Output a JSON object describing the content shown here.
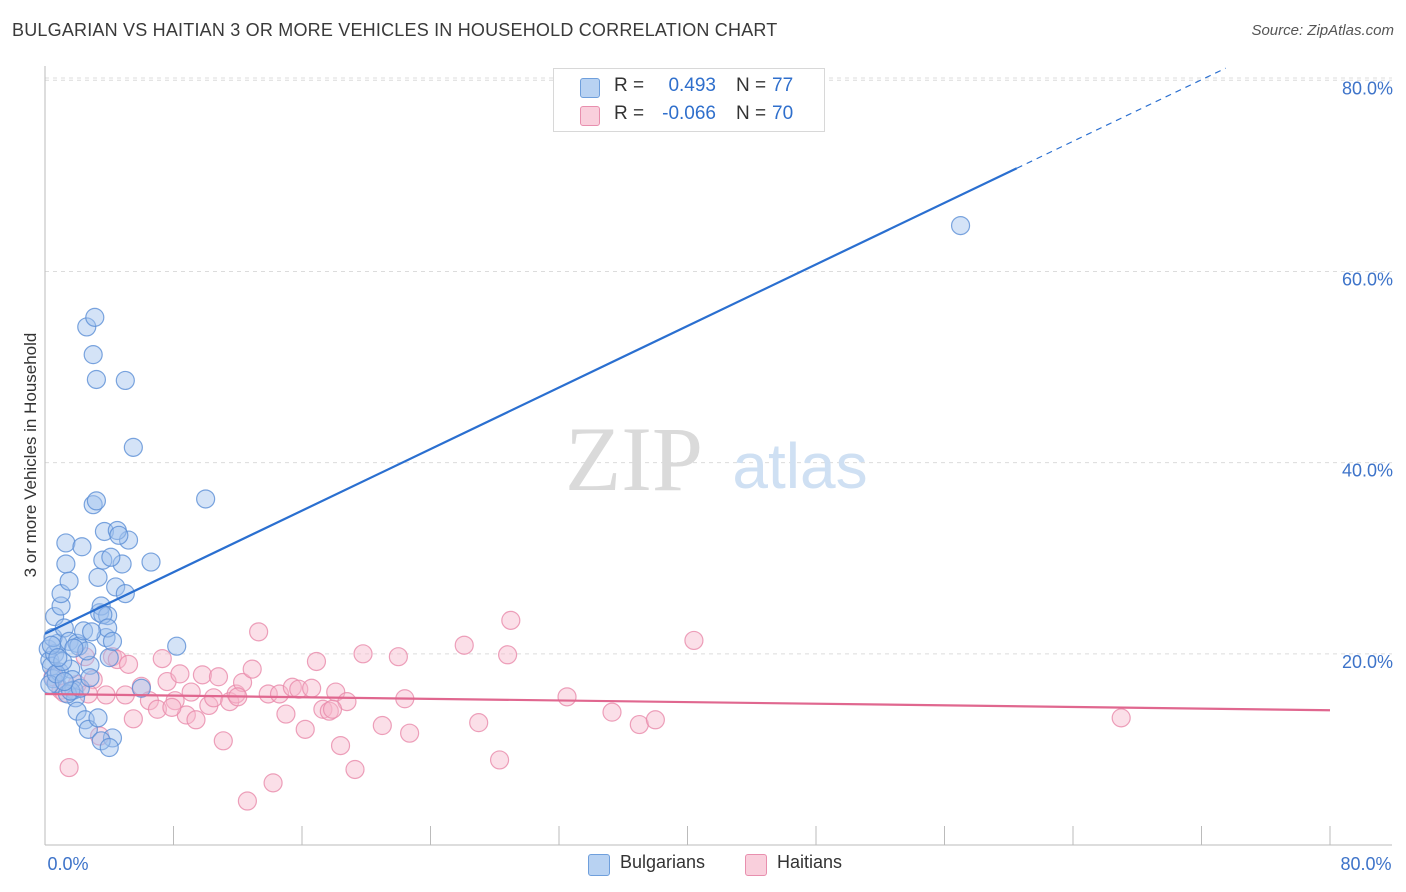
{
  "header": {
    "title": "BULGARIAN VS HAITIAN 3 OR MORE VEHICLES IN HOUSEHOLD CORRELATION CHART",
    "source": "Source: ZipAtlas.com"
  },
  "legend": {
    "rows": [
      {
        "r_label": "R =",
        "r_value": "0.493",
        "n_label": "N =",
        "n_value": "77"
      },
      {
        "r_label": "R =",
        "r_value": "-0.066",
        "n_label": "N =",
        "n_value": "70"
      }
    ]
  },
  "bottom_legend": {
    "series1": "Bulgarians",
    "series2": "Haitians"
  },
  "watermark": {
    "zip": "ZIP",
    "atlas": "atlas"
  },
  "colors": {
    "blue_fill": "#9fc2ee",
    "blue_stroke": "#5b8fd6",
    "blue_line": "#2a6fd0",
    "pink_fill": "#f6b9cd",
    "pink_stroke": "#e98aaa",
    "pink_line": "#e0678f",
    "tick_text": "#3d73c9",
    "grid": "#dcdcdc"
  },
  "chart_data": {
    "type": "scatter",
    "title": "BULGARIAN VS HAITIAN 3 OR MORE VEHICLES IN HOUSEHOLD CORRELATION CHART",
    "xlabel": "",
    "ylabel": "3 or more Vehicles in Household",
    "xlim": [
      0,
      80
    ],
    "ylim": [
      0,
      80
    ],
    "x_ticks": [
      {
        "value": 0,
        "label": "0.0%"
      },
      {
        "value": 80,
        "label": "80.0%"
      }
    ],
    "y_ticks": [
      {
        "value": 20,
        "label": "20.0%"
      },
      {
        "value": 40,
        "label": "40.0%"
      },
      {
        "value": 60,
        "label": "60.0%"
      },
      {
        "value": 80,
        "label": "80.0%"
      }
    ],
    "series": [
      {
        "name": "Bulgarians",
        "R": 0.493,
        "N": 77,
        "trend": {
          "x0": 0,
          "y0": 22.1,
          "x1": 60.5,
          "y1": 70.8,
          "dash_to_x": 88
        },
        "points": [
          [
            0.2,
            20.5
          ],
          [
            0.3,
            19.3
          ],
          [
            0.4,
            18.7
          ],
          [
            0.5,
            17.4
          ],
          [
            0.6,
            20.0
          ],
          [
            0.7,
            16.9
          ],
          [
            0.8,
            21.1
          ],
          [
            0.9,
            18.1
          ],
          [
            0.5,
            21.7
          ],
          [
            0.6,
            23.9
          ],
          [
            1.0,
            25.0
          ],
          [
            1.0,
            26.3
          ],
          [
            1.2,
            22.7
          ],
          [
            1.3,
            29.4
          ],
          [
            1.3,
            31.6
          ],
          [
            1.5,
            27.6
          ],
          [
            1.5,
            21.3
          ],
          [
            1.6,
            18.4
          ],
          [
            1.7,
            17.3
          ],
          [
            1.8,
            16.2
          ],
          [
            1.9,
            15.4
          ],
          [
            2.0,
            14.0
          ],
          [
            2.0,
            21.1
          ],
          [
            2.1,
            20.8
          ],
          [
            2.3,
            31.2
          ],
          [
            2.4,
            22.4
          ],
          [
            2.5,
            13.1
          ],
          [
            2.7,
            12.1
          ],
          [
            2.8,
            18.8
          ],
          [
            3.0,
            35.6
          ],
          [
            3.2,
            36.0
          ],
          [
            3.3,
            28.0
          ],
          [
            3.4,
            24.3
          ],
          [
            3.5,
            25.0
          ],
          [
            3.6,
            29.8
          ],
          [
            3.7,
            32.8
          ],
          [
            3.8,
            21.7
          ],
          [
            4.0,
            19.6
          ],
          [
            4.2,
            11.2
          ],
          [
            4.4,
            27.0
          ],
          [
            2.6,
            54.2
          ],
          [
            3.0,
            51.3
          ],
          [
            3.1,
            55.2
          ],
          [
            3.2,
            48.7
          ],
          [
            5.0,
            48.6
          ],
          [
            5.5,
            41.6
          ],
          [
            4.8,
            29.4
          ],
          [
            5.2,
            31.9
          ],
          [
            5.0,
            26.3
          ],
          [
            4.5,
            32.9
          ],
          [
            3.9,
            24.0
          ],
          [
            6.0,
            16.4
          ],
          [
            6.6,
            29.6
          ],
          [
            8.2,
            20.8
          ],
          [
            10.0,
            36.2
          ],
          [
            0.3,
            16.8
          ],
          [
            0.7,
            17.9
          ],
          [
            1.1,
            19.2
          ],
          [
            1.4,
            15.8
          ],
          [
            1.6,
            16.1
          ],
          [
            2.2,
            16.4
          ],
          [
            2.6,
            20.3
          ],
          [
            2.8,
            17.5
          ],
          [
            3.3,
            13.3
          ],
          [
            3.5,
            10.9
          ],
          [
            3.6,
            24.1
          ],
          [
            3.9,
            22.7
          ],
          [
            4.1,
            30.1
          ],
          [
            4.2,
            21.3
          ],
          [
            4.6,
            32.4
          ],
          [
            0.4,
            20.9
          ],
          [
            0.8,
            19.6
          ],
          [
            1.2,
            17.1
          ],
          [
            1.8,
            20.6
          ],
          [
            2.9,
            22.3
          ],
          [
            4.0,
            10.2
          ],
          [
            57.0,
            64.8
          ]
        ]
      },
      {
        "name": "Haitians",
        "R": -0.066,
        "N": 70,
        "trend": {
          "x0": 0,
          "y0": 15.8,
          "x1": 80,
          "y1": 14.1
        },
        "points": [
          [
            0.5,
            17.6
          ],
          [
            1.0,
            16.2
          ],
          [
            1.5,
            8.1
          ],
          [
            2.0,
            16.8
          ],
          [
            2.5,
            19.7
          ],
          [
            3.0,
            17.3
          ],
          [
            3.4,
            11.4
          ],
          [
            3.8,
            15.7
          ],
          [
            4.2,
            19.7
          ],
          [
            4.5,
            19.4
          ],
          [
            5.0,
            15.7
          ],
          [
            5.5,
            13.2
          ],
          [
            6.0,
            16.6
          ],
          [
            6.5,
            15.1
          ],
          [
            7.0,
            14.2
          ],
          [
            7.3,
            19.5
          ],
          [
            7.6,
            17.1
          ],
          [
            8.1,
            15.1
          ],
          [
            8.4,
            17.9
          ],
          [
            8.8,
            13.6
          ],
          [
            9.1,
            16.0
          ],
          [
            9.4,
            13.1
          ],
          [
            9.8,
            17.8
          ],
          [
            10.2,
            14.6
          ],
          [
            10.5,
            15.4
          ],
          [
            10.8,
            17.6
          ],
          [
            11.1,
            10.9
          ],
          [
            11.5,
            15.0
          ],
          [
            11.9,
            15.8
          ],
          [
            12.3,
            17.0
          ],
          [
            12.6,
            4.6
          ],
          [
            12.9,
            18.4
          ],
          [
            13.3,
            22.3
          ],
          [
            13.9,
            15.8
          ],
          [
            14.2,
            6.5
          ],
          [
            14.6,
            15.8
          ],
          [
            15.0,
            13.7
          ],
          [
            15.4,
            16.5
          ],
          [
            15.8,
            16.3
          ],
          [
            16.2,
            12.1
          ],
          [
            16.6,
            16.4
          ],
          [
            16.9,
            19.2
          ],
          [
            17.3,
            14.2
          ],
          [
            17.7,
            14.0
          ],
          [
            18.1,
            16.0
          ],
          [
            18.4,
            10.4
          ],
          [
            18.8,
            15.0
          ],
          [
            19.3,
            7.9
          ],
          [
            19.8,
            20.0
          ],
          [
            21.0,
            12.5
          ],
          [
            22.0,
            19.7
          ],
          [
            22.4,
            15.3
          ],
          [
            22.7,
            11.7
          ],
          [
            26.1,
            20.9
          ],
          [
            27.0,
            12.8
          ],
          [
            28.3,
            8.9
          ],
          [
            28.8,
            19.9
          ],
          [
            29.0,
            23.5
          ],
          [
            32.5,
            15.5
          ],
          [
            35.3,
            13.9
          ],
          [
            37.0,
            12.6
          ],
          [
            38.0,
            13.1
          ],
          [
            40.4,
            21.4
          ],
          [
            67.0,
            13.3
          ],
          [
            1.2,
            15.9
          ],
          [
            2.7,
            15.8
          ],
          [
            5.2,
            18.9
          ],
          [
            7.9,
            14.4
          ],
          [
            12.0,
            15.5
          ],
          [
            17.9,
            14.2
          ]
        ]
      }
    ]
  }
}
